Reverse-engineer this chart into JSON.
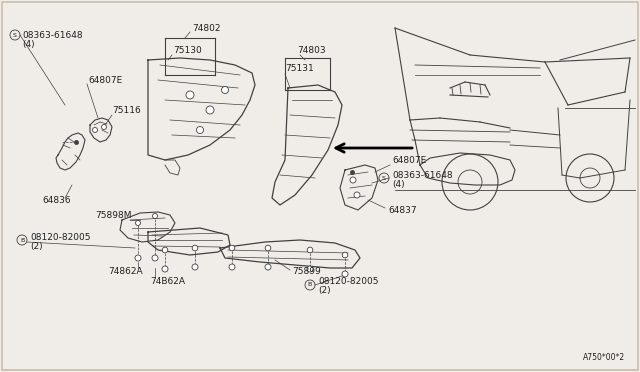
{
  "bg_color": "#f0ede8",
  "border_color": "#c8c0b0",
  "line_color": "#404040",
  "text_color": "#202020",
  "diagram_code": "A750*00*2",
  "fig_width": 6.4,
  "fig_height": 3.72,
  "dpi": 100,
  "labels": {
    "s_label_tl": "08363-61648",
    "s_label_tl2": "(4)",
    "label_64807e_tl": "64807E",
    "label_75116": "75116",
    "label_74802": "74802",
    "label_75130": "75130",
    "label_64836": "64836",
    "label_74803": "74803",
    "label_75131": "75131",
    "label_64807e_tr": "64807E",
    "s_label_tr": "08363-61648",
    "s_label_tr2": "(4)",
    "label_64837": "64837",
    "label_75898m": "75898M",
    "b_label_bl": "08120-82005",
    "b_label_bl2": "(2)",
    "label_74862a_l": "74862A",
    "label_74b62a": "74B62A",
    "label_75899": "75899",
    "b_label_br": "08120-82005",
    "b_label_br2": "(2)"
  }
}
